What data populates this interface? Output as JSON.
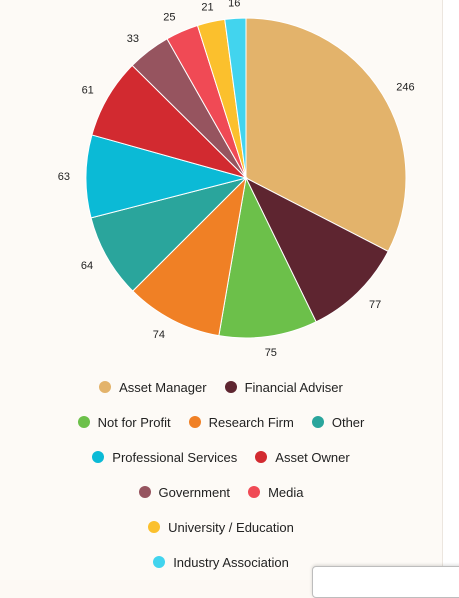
{
  "chart_data": {
    "type": "pie",
    "title": "",
    "slices": [
      {
        "label": "Asset Manager",
        "value": 246,
        "color": "#e3b36b"
      },
      {
        "label": "Financial Adviser",
        "value": 77,
        "color": "#5e2530"
      },
      {
        "label": "Not for Profit",
        "value": 75,
        "color": "#6cc04a"
      },
      {
        "label": "Research Firm",
        "value": 74,
        "color": "#f08025"
      },
      {
        "label": "Other",
        "value": 64,
        "color": "#2aa59c"
      },
      {
        "label": "Professional Services",
        "value": 63,
        "color": "#0bbad6"
      },
      {
        "label": "Asset Owner",
        "value": 61,
        "color": "#d22a30"
      },
      {
        "label": "Government",
        "value": 33,
        "color": "#96545f"
      },
      {
        "label": "Media",
        "value": 25,
        "color": "#f04a55"
      },
      {
        "label": "University / Education",
        "value": 21,
        "color": "#fbc02d"
      },
      {
        "label": "Industry Association",
        "value": 16,
        "color": "#42d4ee"
      }
    ],
    "legend_placement": "bottom",
    "legend_rows": [
      [
        "Asset Manager",
        "Financial Adviser"
      ],
      [
        "Not for Profit",
        "Research Firm",
        "Other"
      ],
      [
        "Professional Services",
        "Asset Owner"
      ],
      [
        "Government",
        "Media"
      ],
      [
        "University / Education"
      ],
      [
        "Industry Association"
      ]
    ]
  }
}
